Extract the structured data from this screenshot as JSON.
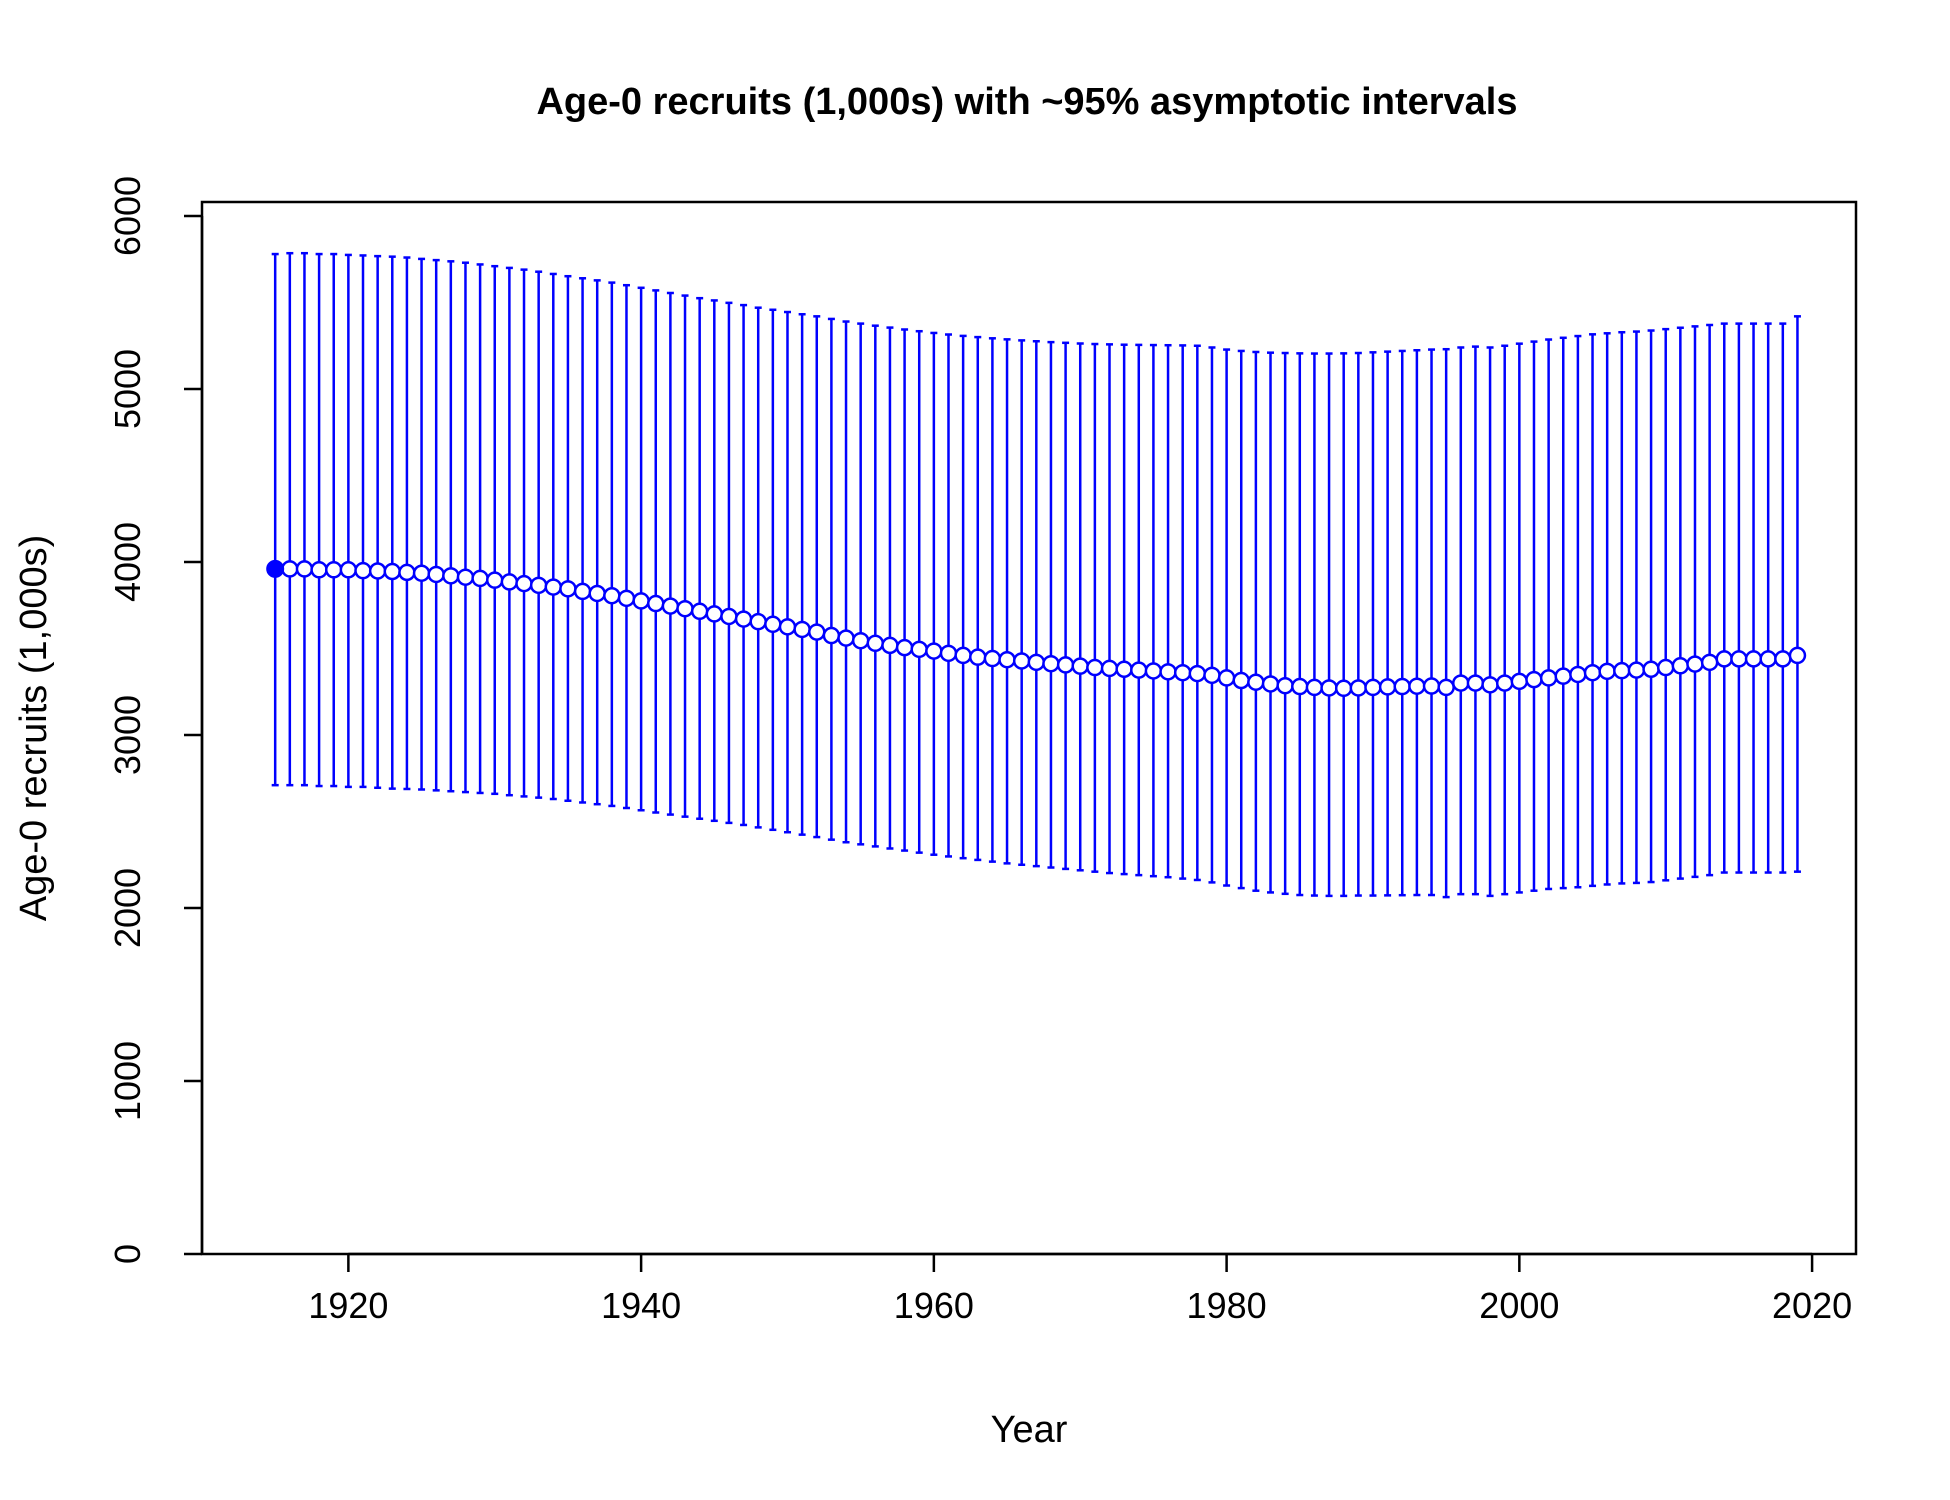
{
  "chart_data": {
    "type": "scatter",
    "title": "Age-0 recruits (1,000s) with ~95% asymptotic intervals",
    "xlabel": "Year",
    "ylabel": "Age-0 recruits (1,000s)",
    "xlim": [
      1910,
      2023
    ],
    "ylim": [
      0,
      6000
    ],
    "x_ticks": [
      1920,
      1940,
      1960,
      1980,
      2000,
      2020
    ],
    "y_ticks": [
      0,
      1000,
      2000,
      3000,
      4000,
      5000,
      6000
    ],
    "grid": false,
    "color": "#0000ff",
    "virgin_point": {
      "year": 1915,
      "value": 3960,
      "lower": 2710,
      "upper": 5780
    },
    "series": [
      {
        "x": [
          1916,
          1917,
          1918,
          1919,
          1920,
          1921,
          1922,
          1923,
          1924,
          1925,
          1926,
          1927,
          1928,
          1929,
          1930,
          1931,
          1932,
          1933,
          1934,
          1935,
          1936,
          1937,
          1938,
          1939,
          1940,
          1941,
          1942,
          1943,
          1944,
          1945,
          1946,
          1947,
          1948,
          1949,
          1950,
          1951,
          1952,
          1953,
          1954,
          1955,
          1956,
          1957,
          1958,
          1959,
          1960,
          1961,
          1962,
          1963,
          1964,
          1965,
          1966,
          1967,
          1968,
          1969,
          1970,
          1971,
          1972,
          1973,
          1974,
          1975,
          1976,
          1977,
          1978,
          1979,
          1980,
          1981,
          1982,
          1983,
          1984,
          1985,
          1986,
          1987,
          1988,
          1989,
          1990,
          1991,
          1992,
          1993,
          1994,
          1995,
          1996,
          1997,
          1998,
          1999,
          2000,
          2001,
          2002,
          2003,
          2004,
          2005,
          2006,
          2007,
          2008,
          2009,
          2010,
          2011,
          2012,
          2013,
          2014,
          2015,
          2016,
          2017,
          2018,
          2019
        ],
        "values": [
          3960,
          3960,
          3955,
          3955,
          3955,
          3950,
          3948,
          3945,
          3940,
          3935,
          3928,
          3920,
          3912,
          3905,
          3895,
          3885,
          3875,
          3865,
          3855,
          3845,
          3830,
          3818,
          3805,
          3790,
          3775,
          3760,
          3745,
          3730,
          3715,
          3700,
          3685,
          3670,
          3655,
          3640,
          3625,
          3610,
          3595,
          3575,
          3560,
          3545,
          3530,
          3518,
          3505,
          3495,
          3485,
          3472,
          3460,
          3450,
          3442,
          3435,
          3428,
          3420,
          3412,
          3405,
          3398,
          3390,
          3385,
          3380,
          3375,
          3370,
          3365,
          3360,
          3355,
          3345,
          3330,
          3315,
          3305,
          3295,
          3285,
          3280,
          3275,
          3272,
          3270,
          3272,
          3275,
          3278,
          3280,
          3282,
          3283,
          3275,
          3300,
          3300,
          3290,
          3300,
          3310,
          3320,
          3330,
          3340,
          3350,
          3360,
          3368,
          3372,
          3375,
          3380,
          3390,
          3400,
          3410,
          3420,
          3440,
          3440,
          3440,
          3440,
          3440,
          3460
        ],
        "lower": [
          2710,
          2710,
          2705,
          2705,
          2700,
          2700,
          2695,
          2690,
          2688,
          2685,
          2680,
          2675,
          2670,
          2665,
          2660,
          2652,
          2645,
          2638,
          2630,
          2620,
          2610,
          2600,
          2590,
          2578,
          2565,
          2552,
          2540,
          2528,
          2516,
          2504,
          2492,
          2480,
          2466,
          2452,
          2438,
          2424,
          2410,
          2395,
          2380,
          2368,
          2356,
          2344,
          2332,
          2320,
          2308,
          2298,
          2288,
          2278,
          2268,
          2258,
          2250,
          2242,
          2234,
          2226,
          2218,
          2210,
          2202,
          2196,
          2190,
          2184,
          2178,
          2170,
          2162,
          2148,
          2130,
          2115,
          2100,
          2090,
          2082,
          2075,
          2072,
          2070,
          2070,
          2072,
          2072,
          2073,
          2074,
          2075,
          2075,
          2063,
          2080,
          2080,
          2070,
          2080,
          2090,
          2100,
          2110,
          2115,
          2120,
          2128,
          2136,
          2142,
          2145,
          2150,
          2160,
          2170,
          2180,
          2190,
          2205,
          2205,
          2205,
          2205,
          2205,
          2210
        ],
        "upper": [
          5785,
          5785,
          5780,
          5780,
          5775,
          5772,
          5768,
          5765,
          5760,
          5752,
          5745,
          5738,
          5730,
          5720,
          5710,
          5700,
          5690,
          5678,
          5665,
          5652,
          5640,
          5628,
          5615,
          5600,
          5585,
          5570,
          5555,
          5540,
          5525,
          5512,
          5498,
          5485,
          5470,
          5458,
          5445,
          5432,
          5420,
          5405,
          5390,
          5378,
          5366,
          5355,
          5344,
          5334,
          5324,
          5315,
          5307,
          5300,
          5293,
          5287,
          5281,
          5276,
          5271,
          5267,
          5263,
          5260,
          5258,
          5256,
          5255,
          5254,
          5253,
          5252,
          5250,
          5240,
          5228,
          5220,
          5214,
          5210,
          5208,
          5206,
          5205,
          5205,
          5206,
          5208,
          5212,
          5216,
          5220,
          5224,
          5228,
          5230,
          5240,
          5245,
          5240,
          5250,
          5262,
          5274,
          5286,
          5296,
          5306,
          5316,
          5322,
          5328,
          5332,
          5338,
          5346,
          5354,
          5362,
          5370,
          5378,
          5378,
          5378,
          5378,
          5378,
          5420
        ]
      }
    ]
  }
}
